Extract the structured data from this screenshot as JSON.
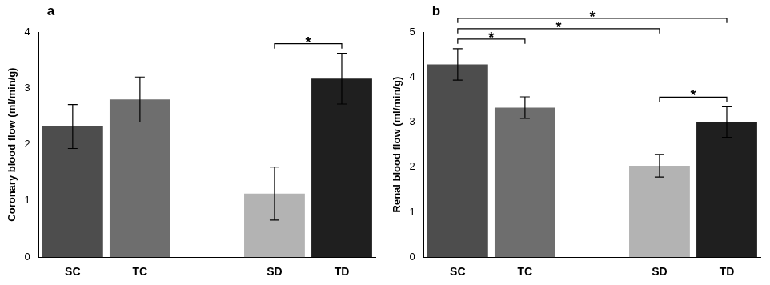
{
  "chart_data": [
    {
      "type": "bar",
      "panel_label": "a",
      "y_label": "Coronary blood flow (ml/min/g)",
      "categories": [
        "SC",
        "TC",
        null,
        "SD",
        "TD"
      ],
      "values": [
        2.32,
        2.8,
        null,
        1.13,
        3.17
      ],
      "errors": [
        0.39,
        0.4,
        null,
        0.47,
        0.45
      ],
      "colors": [
        "#4d4d4d",
        "#6e6e6e",
        null,
        "#b3b3b3",
        "#1f1f1f"
      ],
      "ylim": [
        0,
        4
      ],
      "yticks": [
        0,
        1,
        2,
        3,
        4
      ],
      "grid": false,
      "significance": [
        {
          "from": "SD",
          "to": "TD",
          "label": "*"
        }
      ]
    },
    {
      "type": "bar",
      "panel_label": "b",
      "y_label": "Renal blood flow (ml/min/g)",
      "categories": [
        "SC",
        "TC",
        null,
        "SD",
        "TD"
      ],
      "values": [
        4.28,
        3.32,
        null,
        2.03,
        3.0
      ],
      "errors": [
        0.35,
        0.24,
        null,
        0.25,
        0.34
      ],
      "colors": [
        "#4d4d4d",
        "#6e6e6e",
        null,
        "#b3b3b3",
        "#1f1f1f"
      ],
      "ylim": [
        0,
        5
      ],
      "yticks": [
        0,
        1,
        2,
        3,
        4,
        5
      ],
      "grid": false,
      "significance": [
        {
          "from": "SC",
          "to": "TC",
          "label": "*"
        },
        {
          "from": "SD",
          "to": "TD",
          "label": "*"
        },
        {
          "from": "SC",
          "to": "SD",
          "label": "*"
        },
        {
          "from": "SC",
          "to": "TD",
          "label": "*"
        }
      ]
    }
  ]
}
